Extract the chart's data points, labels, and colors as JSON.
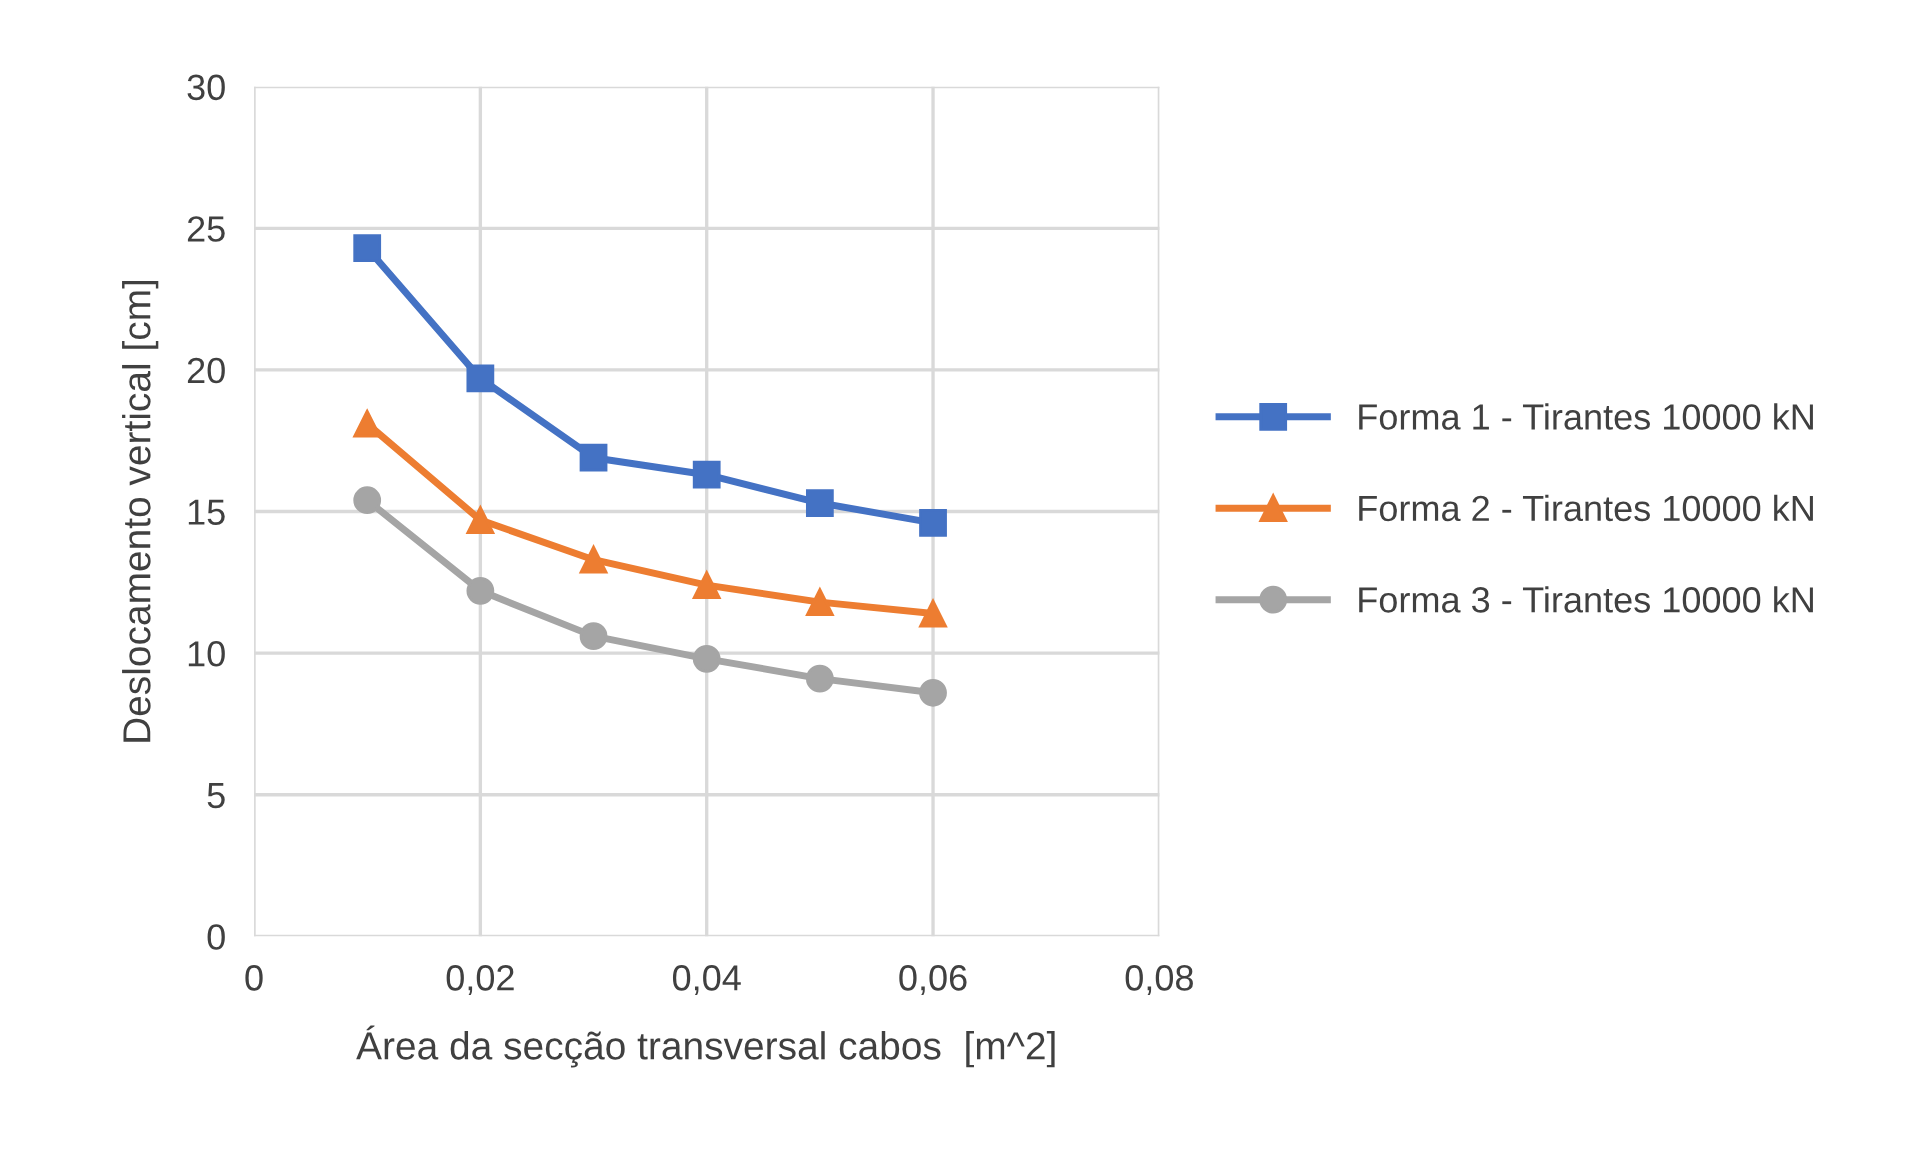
{
  "chart_data": {
    "type": "line",
    "xlabel": "Área da secção transversal cabos  [m^2]",
    "ylabel": "Deslocamento vertical [cm]",
    "x": [
      0.01,
      0.02,
      0.03,
      0.04,
      0.05,
      0.06
    ],
    "series": [
      {
        "name": "Forma 1 - Tirantes 10000 kN",
        "color": "#4472c4",
        "marker": "square",
        "values": [
          24.3,
          19.7,
          16.9,
          16.3,
          15.3,
          14.6
        ]
      },
      {
        "name": "Forma 2 - Tirantes 10000 kN",
        "color": "#ed7d31",
        "marker": "triangle",
        "values": [
          18.1,
          14.7,
          13.3,
          12.4,
          11.8,
          11.4
        ]
      },
      {
        "name": "Forma 3 - Tirantes 10000 kN",
        "color": "#a5a5a5",
        "marker": "circle",
        "values": [
          15.4,
          12.2,
          10.6,
          9.8,
          9.1,
          8.6
        ]
      }
    ],
    "xlim": [
      0,
      0.08
    ],
    "xticks": [
      {
        "value": 0,
        "label": "0"
      },
      {
        "value": 0.02,
        "label": "0,02"
      },
      {
        "value": 0.04,
        "label": "0,04"
      },
      {
        "value": 0.06,
        "label": "0,06"
      },
      {
        "value": 0.08,
        "label": "0,08"
      }
    ],
    "ylim": [
      0,
      30
    ],
    "yticks": [
      0,
      5,
      10,
      15,
      20,
      25,
      30
    ],
    "grid": true,
    "legend": "right",
    "line_style": "solid"
  }
}
